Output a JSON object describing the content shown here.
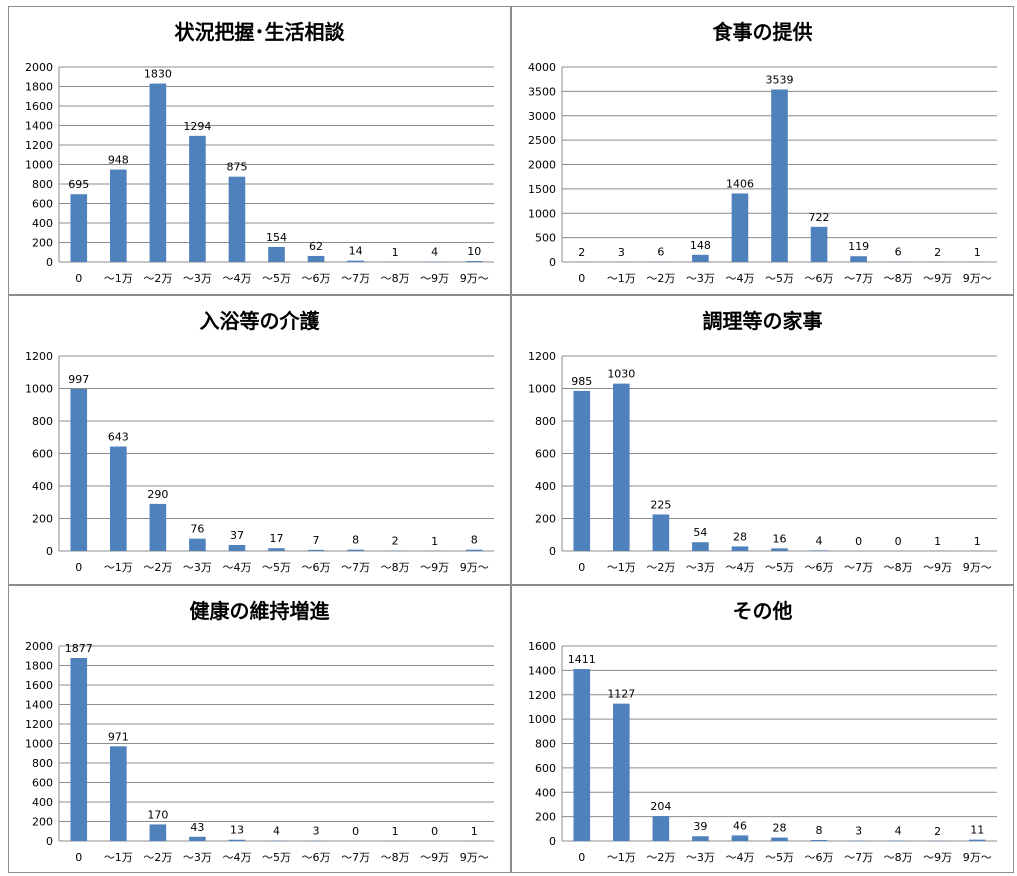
{
  "chart_data": [
    {
      "type": "bar",
      "title": "状況把握･生活相談",
      "categories": [
        "0",
        "～1万",
        "～2万",
        "～3万",
        "～4万",
        "～5万",
        "～6万",
        "～7万",
        "～8万",
        "～9万",
        "9万～"
      ],
      "values": [
        695,
        948,
        1830,
        1294,
        875,
        154,
        62,
        14,
        1,
        4,
        10
      ],
      "yticks": [
        0,
        200,
        400,
        600,
        800,
        1000,
        1200,
        1400,
        1600,
        1800,
        2000
      ],
      "ylim": [
        0,
        2000
      ],
      "grid": true,
      "color": "#4f81bd"
    },
    {
      "type": "bar",
      "title": "食事の提供",
      "categories": [
        "0",
        "～1万",
        "～2万",
        "～3万",
        "～4万",
        "～5万",
        "～6万",
        "～7万",
        "～8万",
        "～9万",
        "9万～"
      ],
      "values": [
        2,
        3,
        6,
        148,
        1406,
        3539,
        722,
        119,
        6,
        2,
        1
      ],
      "yticks": [
        0,
        500,
        1000,
        1500,
        2000,
        2500,
        3000,
        3500,
        4000
      ],
      "ylim": [
        0,
        4000
      ],
      "grid": true,
      "color": "#4f81bd"
    },
    {
      "type": "bar",
      "title": "入浴等の介護",
      "categories": [
        "0",
        "～1万",
        "～2万",
        "～3万",
        "～4万",
        "～5万",
        "～6万",
        "～7万",
        "～8万",
        "～9万",
        "9万～"
      ],
      "values": [
        997,
        643,
        290,
        76,
        37,
        17,
        7,
        8,
        2,
        1,
        8
      ],
      "yticks": [
        0,
        200,
        400,
        600,
        800,
        1000,
        1200
      ],
      "ylim": [
        0,
        1200
      ],
      "grid": true,
      "color": "#4f81bd"
    },
    {
      "type": "bar",
      "title": "調理等の家事",
      "categories": [
        "0",
        "～1万",
        "～2万",
        "～3万",
        "～4万",
        "～5万",
        "～6万",
        "～7万",
        "～8万",
        "～9万",
        "9万～"
      ],
      "values": [
        985,
        1030,
        225,
        54,
        28,
        16,
        4,
        0,
        0,
        1,
        1
      ],
      "yticks": [
        0,
        200,
        400,
        600,
        800,
        1000,
        1200
      ],
      "ylim": [
        0,
        1200
      ],
      "grid": true,
      "color": "#4f81bd"
    },
    {
      "type": "bar",
      "title": "健康の維持増進",
      "categories": [
        "0",
        "～1万",
        "～2万",
        "～3万",
        "～4万",
        "～5万",
        "～6万",
        "～7万",
        "～8万",
        "～9万",
        "9万～"
      ],
      "values": [
        1877,
        971,
        170,
        43,
        13,
        4,
        3,
        0,
        1,
        0,
        1
      ],
      "yticks": [
        0,
        200,
        400,
        600,
        800,
        1000,
        1200,
        1400,
        1600,
        1800,
        2000
      ],
      "ylim": [
        0,
        2000
      ],
      "grid": true,
      "color": "#4f81bd"
    },
    {
      "type": "bar",
      "title": "その他",
      "categories": [
        "0",
        "～1万",
        "～2万",
        "～3万",
        "～4万",
        "～5万",
        "～6万",
        "～7万",
        "～8万",
        "～9万",
        "9万～"
      ],
      "values": [
        1411,
        1127,
        204,
        39,
        46,
        28,
        8,
        3,
        4,
        2,
        11
      ],
      "yticks": [
        0,
        200,
        400,
        600,
        800,
        1000,
        1200,
        1400,
        1600
      ],
      "ylim": [
        0,
        1600
      ],
      "grid": true,
      "color": "#4f81bd"
    }
  ]
}
